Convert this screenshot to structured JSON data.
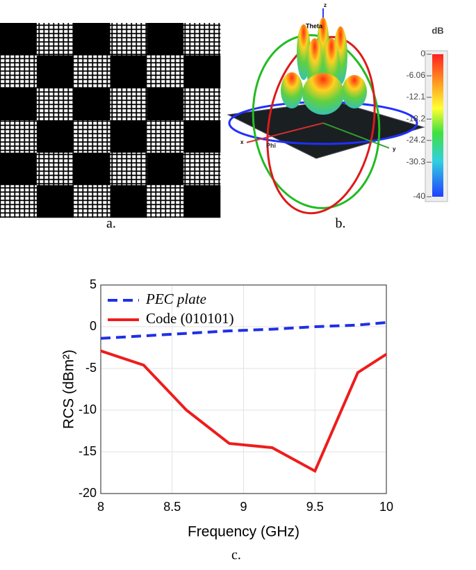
{
  "panel_labels": {
    "a": "a.",
    "b": "b.",
    "c": "c."
  },
  "figure_b": {
    "axis_z": "z",
    "axis_x": "x",
    "axis_y": "y",
    "theta": "Theta",
    "phi": "Phi",
    "colorbar": {
      "label": "dB",
      "ticks": [
        0,
        -6.06,
        -12.1,
        -18.2,
        -24.2,
        -30.3,
        -40
      ],
      "lim": [
        0,
        -40
      ]
    }
  },
  "chart_data": {
    "type": "line",
    "xlabel": "Frequency (GHz)",
    "ylabel": "RCS (dBm²)",
    "x": [
      8,
      8.3,
      8.6,
      8.9,
      9.2,
      9.5,
      9.8,
      10
    ],
    "series": [
      {
        "name": "PEC plate",
        "color": "#1f2fe6",
        "dashed": true,
        "values": [
          -1.4,
          -1.1,
          -0.8,
          -0.5,
          -0.3,
          0,
          0.2,
          0.5
        ]
      },
      {
        "name": "Code (010101)",
        "color": "#ee1c1c",
        "dashed": false,
        "values": [
          -2.9,
          -4.6,
          -10,
          -14,
          -14.5,
          -17.3,
          -5.5,
          -3.3
        ]
      }
    ],
    "xlim": [
      8,
      10
    ],
    "xticks": [
      8,
      8.5,
      9,
      9.5,
      10
    ],
    "ylim": [
      -20,
      5
    ],
    "yticks": [
      5,
      0,
      -5,
      -10,
      -15,
      -20
    ],
    "grid": true,
    "legend": "upper left"
  }
}
